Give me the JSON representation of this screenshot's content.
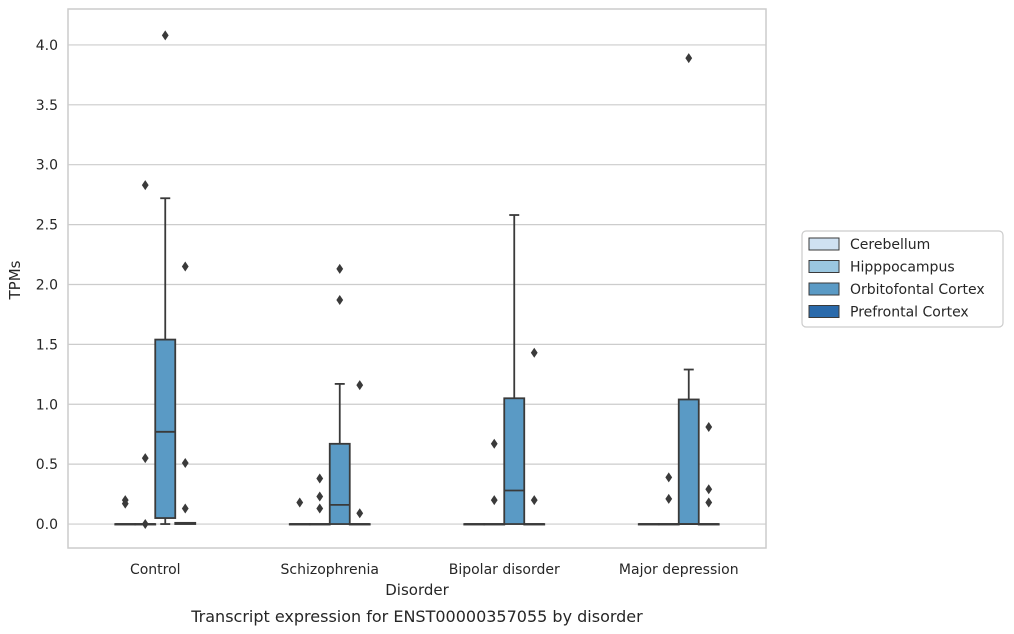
{
  "chart_data": {
    "type": "box",
    "xlabel": "Disorder",
    "ylabel": "TPMs",
    "caption": "Transcript expression for ENST00000357055 by disorder",
    "ylim": [
      -0.2,
      4.3
    ],
    "yticks": [
      "0.0",
      "0.5",
      "1.0",
      "1.5",
      "2.0",
      "2.5",
      "3.0",
      "3.5",
      "4.0"
    ],
    "grid": true,
    "legend_position": "right",
    "categories": [
      "Control",
      "Schizophrenia",
      "Bipolar disorder",
      "Major depression"
    ],
    "series": [
      {
        "name": "Cerebellum",
        "color": "#cfe1f2",
        "boxes": [
          {
            "q1": 0,
            "median": 0,
            "q3": 0,
            "whisker_low": 0,
            "whisker_high": 0,
            "outliers": [
              0.2,
              0.17
            ]
          },
          {
            "q1": 0,
            "median": 0,
            "q3": 0,
            "whisker_low": 0,
            "whisker_high": 0,
            "outliers": [
              0.18
            ]
          },
          {
            "q1": 0,
            "median": 0,
            "q3": 0,
            "whisker_low": 0,
            "whisker_high": 0,
            "outliers": []
          },
          {
            "q1": 0,
            "median": 0,
            "q3": 0,
            "whisker_low": 0,
            "whisker_high": 0,
            "outliers": []
          }
        ]
      },
      {
        "name": "Hipppocampus",
        "color": "#9ac7e0",
        "boxes": [
          {
            "q1": 0,
            "median": 0,
            "q3": 0,
            "whisker_low": 0,
            "whisker_high": 0,
            "outliers": [
              2.83,
              0.55,
              0.0
            ]
          },
          {
            "q1": 0,
            "median": 0,
            "q3": 0,
            "whisker_low": 0,
            "whisker_high": 0,
            "outliers": [
              0.38,
              0.23,
              0.13
            ]
          },
          {
            "q1": 0,
            "median": 0,
            "q3": 0,
            "whisker_low": 0,
            "whisker_high": 0,
            "outliers": [
              0.67,
              0.2
            ]
          },
          {
            "q1": 0,
            "median": 0,
            "q3": 0,
            "whisker_low": 0,
            "whisker_high": 0,
            "outliers": [
              0.39,
              0.21
            ]
          }
        ]
      },
      {
        "name": "Orbitofontal Cortex",
        "color": "#5a9ac5",
        "boxes": [
          {
            "q1": 0.05,
            "median": 0.77,
            "q3": 1.54,
            "whisker_low": 0,
            "whisker_high": 2.72,
            "outliers": [
              4.08
            ]
          },
          {
            "q1": 0,
            "median": 0.16,
            "q3": 0.67,
            "whisker_low": 0,
            "whisker_high": 1.17,
            "outliers": [
              2.13,
              1.87
            ]
          },
          {
            "q1": 0,
            "median": 0.28,
            "q3": 1.05,
            "whisker_low": 0,
            "whisker_high": 2.58,
            "outliers": []
          },
          {
            "q1": 0,
            "median": 0,
            "q3": 1.04,
            "whisker_low": 0,
            "whisker_high": 1.29,
            "outliers": [
              3.89
            ]
          }
        ]
      },
      {
        "name": "Prefrontal Cortex",
        "color": "#2a6aab",
        "boxes": [
          {
            "q1": 0,
            "median": 0.01,
            "q3": 0.01,
            "whisker_low": 0,
            "whisker_high": 0.01,
            "outliers": [
              2.15,
              0.51,
              0.13
            ]
          },
          {
            "q1": 0,
            "median": 0,
            "q3": 0,
            "whisker_low": 0,
            "whisker_high": 0,
            "outliers": [
              1.16,
              0.09
            ]
          },
          {
            "q1": 0,
            "median": 0,
            "q3": 0,
            "whisker_low": 0,
            "whisker_high": 0,
            "outliers": [
              1.43,
              0.2
            ]
          },
          {
            "q1": 0,
            "median": 0,
            "q3": 0,
            "whisker_low": 0,
            "whisker_high": 0,
            "outliers": [
              0.81,
              0.29,
              0.18
            ]
          }
        ]
      }
    ]
  }
}
